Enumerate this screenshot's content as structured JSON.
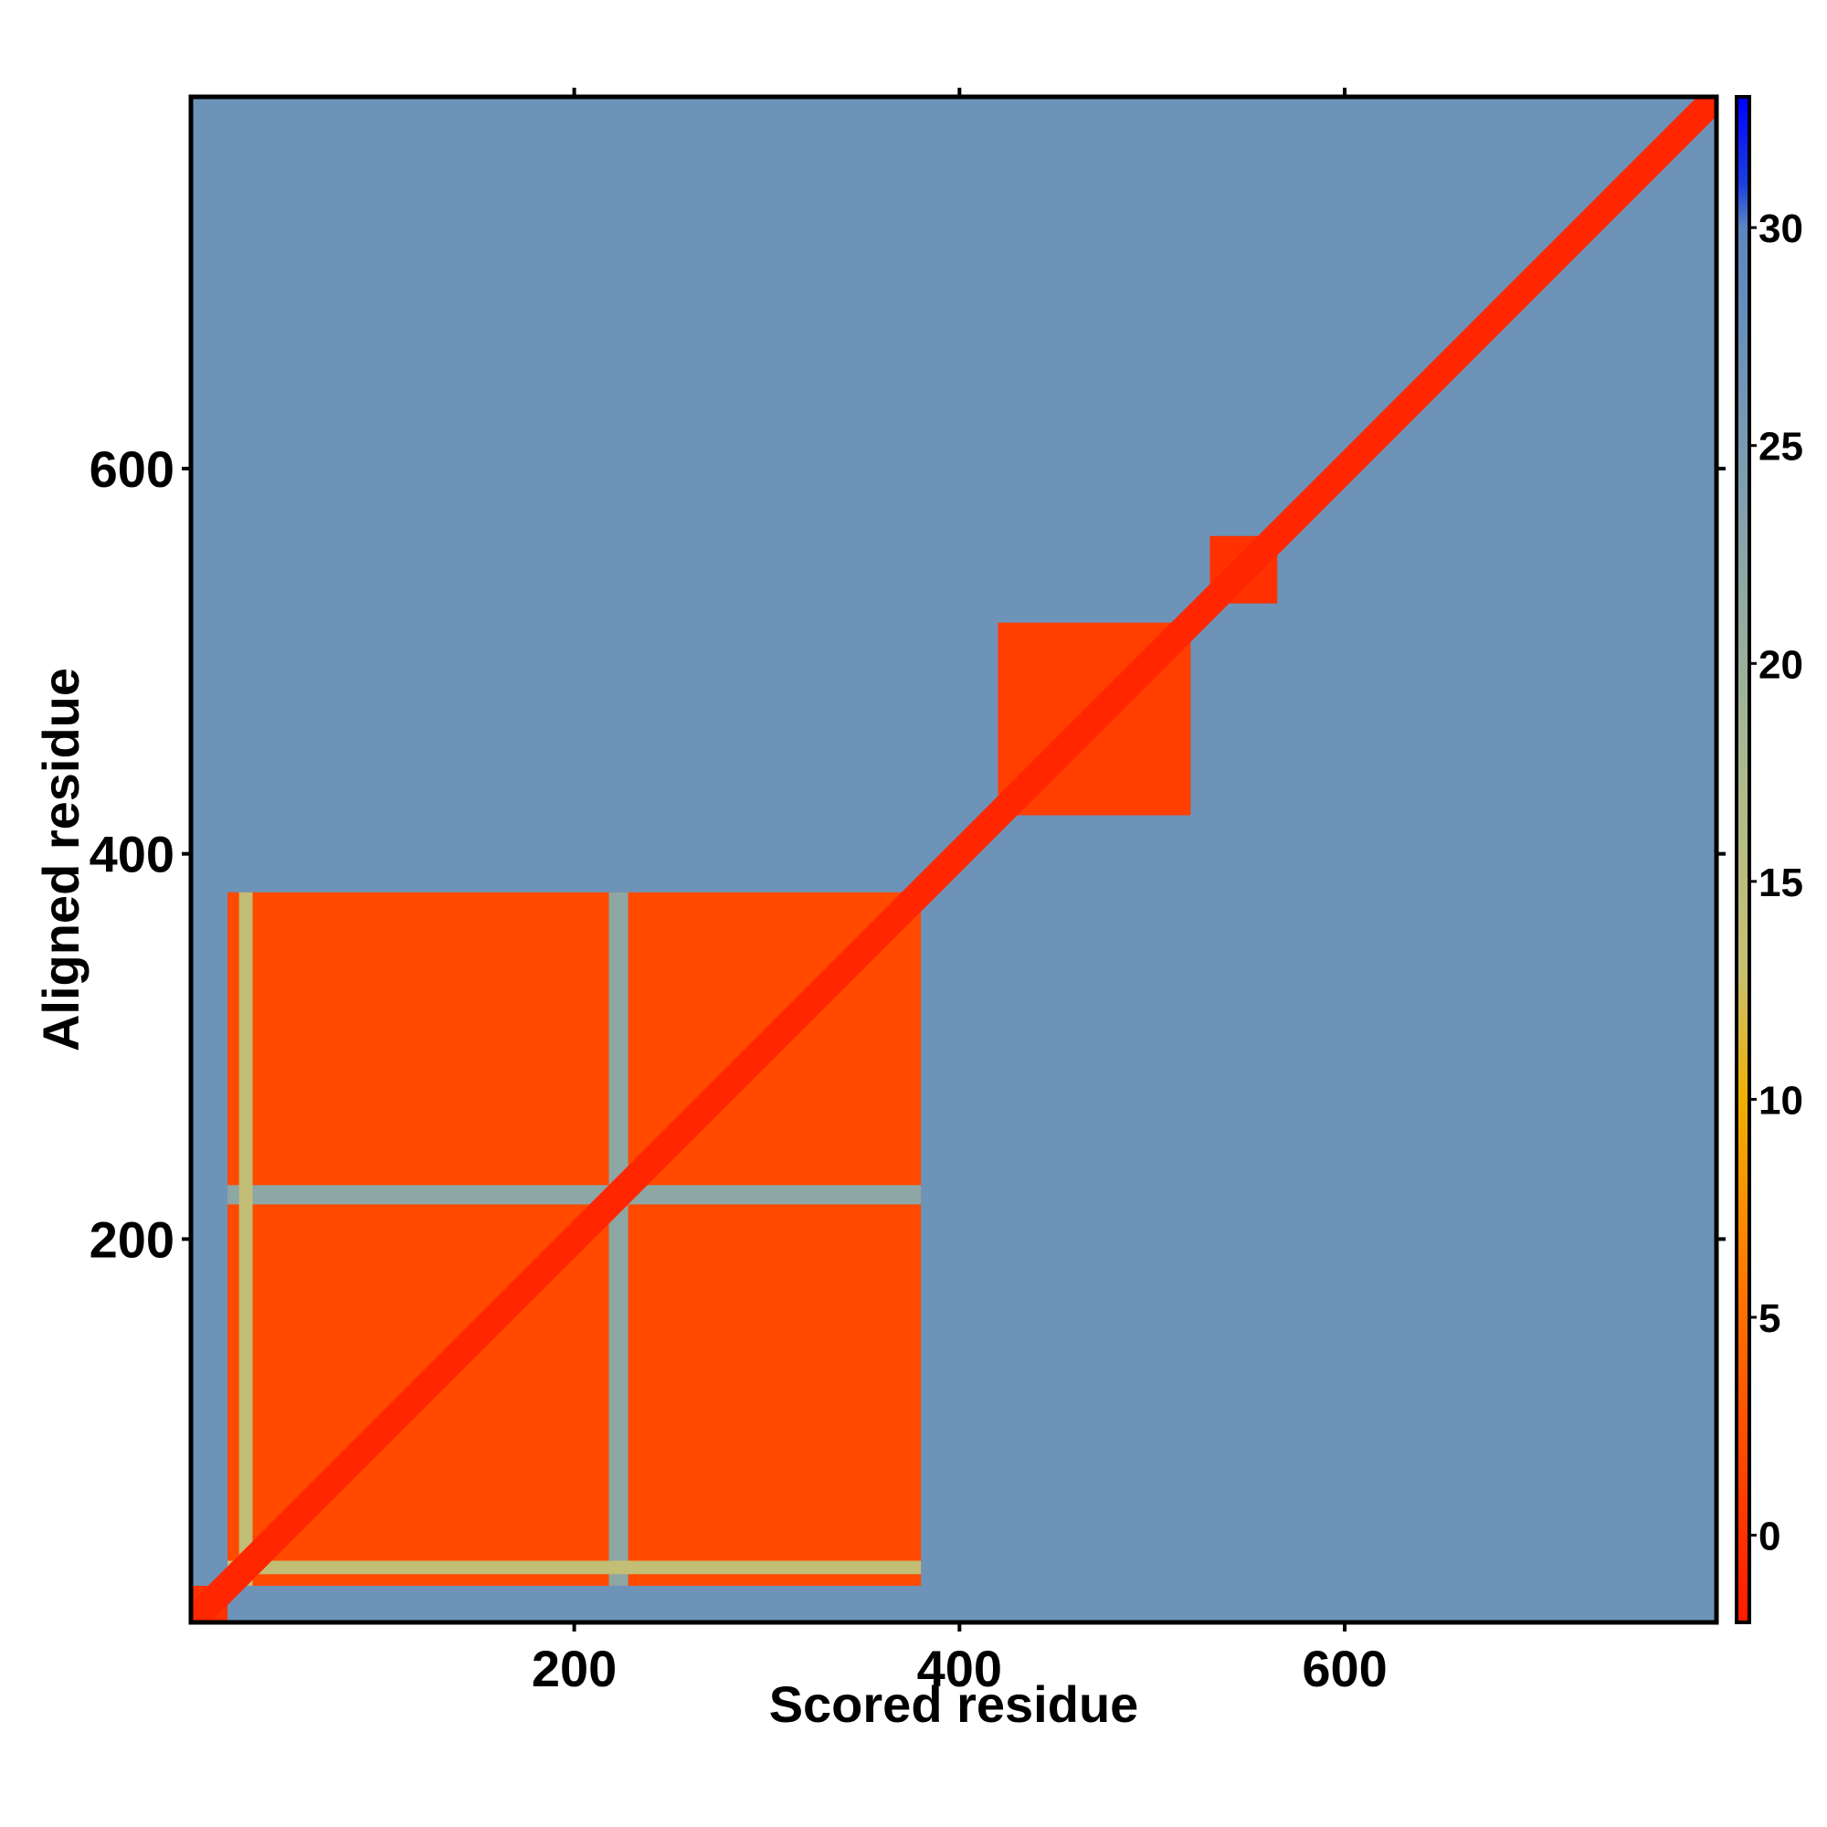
{
  "chart_data": {
    "type": "heatmap",
    "title": "",
    "xlabel": "Scored residue",
    "ylabel": "Aligned residue",
    "xlim": [
      1,
      793
    ],
    "ylim": [
      1,
      793
    ],
    "x_ticks": [
      200,
      400,
      600
    ],
    "y_ticks": [
      200,
      400,
      600
    ],
    "colorbar": {
      "range": [
        -2,
        33
      ],
      "ticks": [
        0,
        5,
        10,
        15,
        20,
        25,
        30
      ],
      "stops": [
        {
          "value": -2,
          "color": "#ff1a00"
        },
        {
          "value": 2,
          "color": "#ff4a00"
        },
        {
          "value": 6,
          "color": "#ff7a00"
        },
        {
          "value": 10,
          "color": "#f0b000"
        },
        {
          "value": 13,
          "color": "#c8c070"
        },
        {
          "value": 18,
          "color": "#a8b890"
        },
        {
          "value": 24,
          "color": "#7f9fb0"
        },
        {
          "value": 30,
          "color": "#5b86bf"
        },
        {
          "value": 31,
          "color": "#1c3fe0"
        },
        {
          "value": 33,
          "color": "#0000ff"
        }
      ]
    },
    "background_value": 27,
    "diagonal_value": -1,
    "diagonal_halfwidth": 10,
    "domains": [
      {
        "from": 1,
        "to": 20,
        "value": 0
      },
      {
        "from": 20,
        "to": 380,
        "value": 2
      },
      {
        "from": 420,
        "to": 520,
        "value": 1
      },
      {
        "from": 530,
        "to": 565,
        "value": 0
      }
    ],
    "gaps": [
      {
        "from": 218,
        "to": 228,
        "value": 22
      },
      {
        "from": 26,
        "to": 33,
        "value": 14
      }
    ]
  }
}
